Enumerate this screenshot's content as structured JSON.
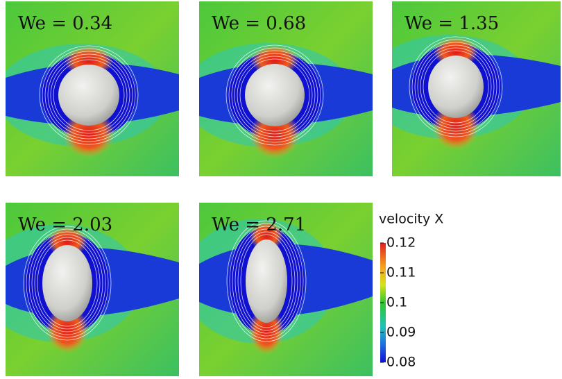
{
  "panels": [
    {
      "label": "We = 0.34"
    },
    {
      "label": "We = 0.68"
    },
    {
      "label": "We = 1.35"
    },
    {
      "label": "We = 2.03"
    },
    {
      "label": "We = 2.71"
    }
  ],
  "colorbar": {
    "title": "velocity X",
    "lim": [
      0.08,
      0.12
    ],
    "ticks": [
      0.12,
      0.11,
      0.1,
      0.09,
      0.08
    ]
  }
}
